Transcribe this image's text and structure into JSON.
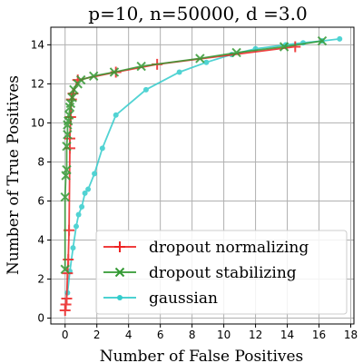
{
  "chart_data": {
    "type": "line",
    "title": "p=10, n=50000, d =3.0",
    "xlabel": "Number of False Positives",
    "ylabel": "Number of True Positives",
    "xlim": [
      -0.9,
      18.2
    ],
    "ylim": [
      -0.3,
      14.9
    ],
    "xticks": [
      0,
      2,
      4,
      6,
      8,
      10,
      12,
      14,
      16,
      18
    ],
    "yticks": [
      0,
      2,
      4,
      6,
      8,
      10,
      12,
      14
    ],
    "grid": true,
    "legend_position": "lower-right",
    "series": [
      {
        "name": "dropout normalizing",
        "color": "#ee2222",
        "marker": "plus",
        "x": [
          0.0,
          0.05,
          0.1,
          0.15,
          0.2,
          0.25,
          0.3,
          0.3,
          0.35,
          0.4,
          0.5,
          0.8,
          3.2,
          5.8,
          14.5
        ],
        "y": [
          0.4,
          0.7,
          1.0,
          2.3,
          3.0,
          4.5,
          8.7,
          9.2,
          10.3,
          11.2,
          11.5,
          12.2,
          12.6,
          13.0,
          13.9
        ]
      },
      {
        "name": "dropout stabilizing",
        "color": "#339933",
        "marker": "x",
        "x": [
          0.0,
          0.0,
          0.05,
          0.1,
          0.1,
          0.15,
          0.15,
          0.2,
          0.25,
          0.3,
          0.35,
          0.45,
          0.55,
          0.8,
          1.0,
          1.8,
          3.1,
          4.8,
          8.5,
          10.8,
          13.8,
          16.2
        ],
        "y": [
          2.5,
          6.2,
          7.3,
          7.6,
          8.8,
          9.4,
          9.9,
          10.1,
          10.4,
          10.8,
          11.0,
          11.3,
          11.7,
          12.0,
          12.2,
          12.4,
          12.6,
          12.9,
          13.3,
          13.6,
          13.9,
          14.2
        ]
      },
      {
        "name": "gaussian",
        "color": "#33cccc",
        "marker": "dot",
        "x": [
          0.15,
          0.3,
          0.5,
          0.7,
          0.85,
          1.05,
          1.25,
          1.45,
          1.85,
          2.35,
          3.2,
          5.1,
          7.2,
          8.9,
          10.5,
          12.0,
          13.9,
          15.0,
          16.2,
          17.3
        ],
        "y": [
          1.3,
          2.4,
          3.6,
          4.7,
          5.3,
          5.7,
          6.4,
          6.6,
          7.4,
          8.7,
          10.4,
          11.7,
          12.6,
          13.1,
          13.5,
          13.8,
          14.0,
          14.1,
          14.2,
          14.3
        ]
      }
    ]
  }
}
